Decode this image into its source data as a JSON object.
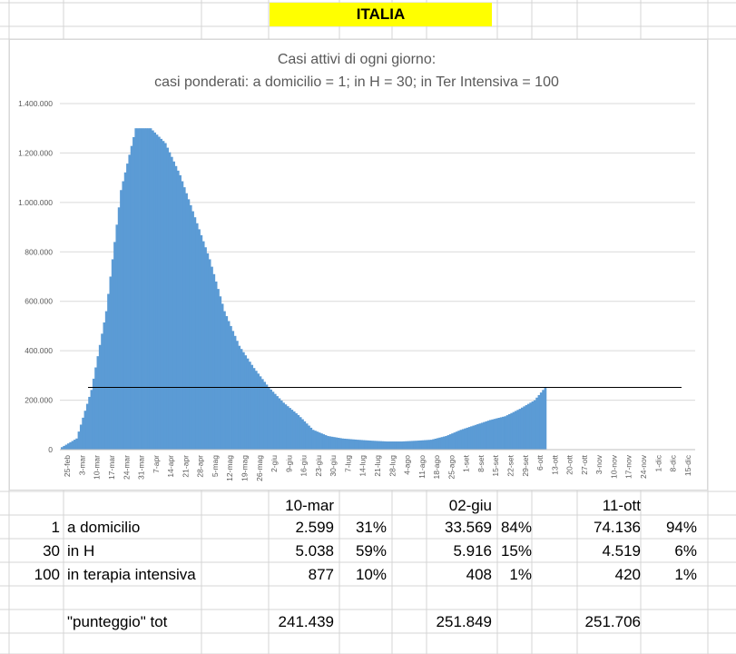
{
  "sheet": {
    "header": "ITALIA",
    "table": {
      "col_dates": [
        "10-mar",
        "02-giu",
        "11-ott"
      ],
      "rows": [
        {
          "weight": "1",
          "label": "a domicilio",
          "values": [
            "2.599",
            "33.569",
            "74.136"
          ],
          "pcts": [
            "31%",
            "84%",
            "94%"
          ]
        },
        {
          "weight": "30",
          "label": "in H",
          "values": [
            "5.038",
            "5.916",
            "4.519"
          ],
          "pcts": [
            "59%",
            "15%",
            "6%"
          ]
        },
        {
          "weight": "100",
          "label": "in terapia intensiva",
          "values": [
            "877",
            "408",
            "420"
          ],
          "pcts": [
            "10%",
            "1%",
            "1%"
          ]
        }
      ],
      "total_label": "\"punteggio\" tot",
      "totals": [
        "241.439",
        "251.849",
        "251.706"
      ]
    },
    "colors": {
      "grid": "#d4d4d4",
      "header_bg": "#ffff00",
      "bar": "#5b9bd5",
      "reference_line": "#000000"
    }
  },
  "chart_data": {
    "type": "area",
    "title": "Casi attivi di ogni giorno:",
    "subtitle": "casi ponderati: a domicilio = 1; in H = 30; in Ter Intensiva = 100",
    "ylim": [
      0,
      1400000
    ],
    "yticks": [
      0,
      200000,
      400000,
      600000,
      800000,
      1000000,
      1200000,
      1400000
    ],
    "ytick_labels": [
      "0",
      "200.000",
      "400.000",
      "600.000",
      "800.000",
      "1.000.000",
      "1.200.000",
      "1.400.000"
    ],
    "x_labels": [
      "25-feb",
      "3-mar",
      "10-mar",
      "17-mar",
      "24-mar",
      "31-mar",
      "7-apr",
      "14-apr",
      "21-apr",
      "28-apr",
      "5-mag",
      "12-mag",
      "19-mag",
      "26-mag",
      "2-giu",
      "9-giu",
      "16-giu",
      "23-giu",
      "30-giu",
      "7-lug",
      "14-lug",
      "21-lug",
      "28-lug",
      "4-ago",
      "11-ago",
      "18-ago",
      "25-ago",
      "1-set",
      "8-set",
      "15-set",
      "22-set",
      "29-set",
      "6-ott",
      "13-ott",
      "20-ott",
      "27-ott",
      "3-nov",
      "10-nov",
      "17-nov",
      "24-nov",
      "1-dic",
      "8-dic",
      "15-dic"
    ],
    "points": [
      {
        "x": "25-feb",
        "y": 10000
      },
      {
        "x": "3-mar",
        "y": 45000
      },
      {
        "x": "10-mar",
        "y": 241439
      },
      {
        "x": "17-mar",
        "y": 560000
      },
      {
        "x": "24-mar",
        "y": 1050000
      },
      {
        "x": "31-mar",
        "y": 1300000
      },
      {
        "x": "7-apr",
        "y": 1300000
      },
      {
        "x": "14-apr",
        "y": 1240000
      },
      {
        "x": "21-apr",
        "y": 1110000
      },
      {
        "x": "28-apr",
        "y": 940000
      },
      {
        "x": "5-mag",
        "y": 770000
      },
      {
        "x": "12-mag",
        "y": 560000
      },
      {
        "x": "19-mag",
        "y": 420000
      },
      {
        "x": "26-mag",
        "y": 330000
      },
      {
        "x": "2-giu",
        "y": 251849
      },
      {
        "x": "9-giu",
        "y": 190000
      },
      {
        "x": "16-giu",
        "y": 140000
      },
      {
        "x": "23-giu",
        "y": 80000
      },
      {
        "x": "30-giu",
        "y": 55000
      },
      {
        "x": "7-lug",
        "y": 45000
      },
      {
        "x": "14-lug",
        "y": 40000
      },
      {
        "x": "21-lug",
        "y": 36000
      },
      {
        "x": "28-lug",
        "y": 33000
      },
      {
        "x": "4-ago",
        "y": 33000
      },
      {
        "x": "11-ago",
        "y": 36000
      },
      {
        "x": "18-ago",
        "y": 40000
      },
      {
        "x": "25-ago",
        "y": 55000
      },
      {
        "x": "1-set",
        "y": 80000
      },
      {
        "x": "8-set",
        "y": 100000
      },
      {
        "x": "15-set",
        "y": 120000
      },
      {
        "x": "22-set",
        "y": 135000
      },
      {
        "x": "29-set",
        "y": 165000
      },
      {
        "x": "6-ott",
        "y": 200000
      },
      {
        "x": "11-ott",
        "y": 251706
      }
    ],
    "reference_line": {
      "y": 251706
    },
    "grid": true,
    "legend": "none"
  }
}
